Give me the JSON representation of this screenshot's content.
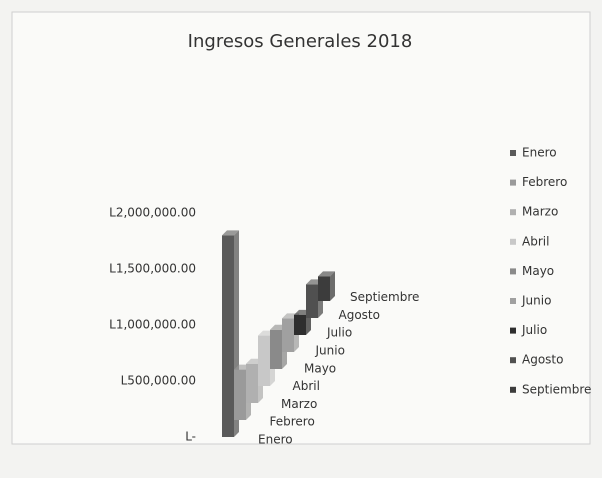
{
  "chart_data": {
    "type": "bar3d",
    "title": "Ingresos Generales 2018",
    "categories": [
      "Enero",
      "Febrero",
      "Marzo",
      "Abril",
      "Mayo",
      "Junio",
      "Julio",
      "Agosto",
      "Septiembre"
    ],
    "values": [
      1800000,
      450000,
      350000,
      450000,
      350000,
      300000,
      180000,
      300000,
      220000
    ],
    "colors": [
      "#5a5a5a",
      "#9a9a9a",
      "#b0b0b0",
      "#c8c8c8",
      "#8a8a8a",
      "#a0a0a0",
      "#2e2e2e",
      "#505050",
      "#3c3c3c"
    ],
    "ylim": [
      0,
      2000000
    ],
    "yticks": [
      {
        "value": 0,
        "label": "L-"
      },
      {
        "value": 500000,
        "label": "L500,000.00"
      },
      {
        "value": 1000000,
        "label": "L1,000,000.00"
      },
      {
        "value": 1500000,
        "label": "L1,500,000.00"
      },
      {
        "value": 2000000,
        "label": "L2,000,000.00"
      }
    ],
    "legend": "right"
  }
}
